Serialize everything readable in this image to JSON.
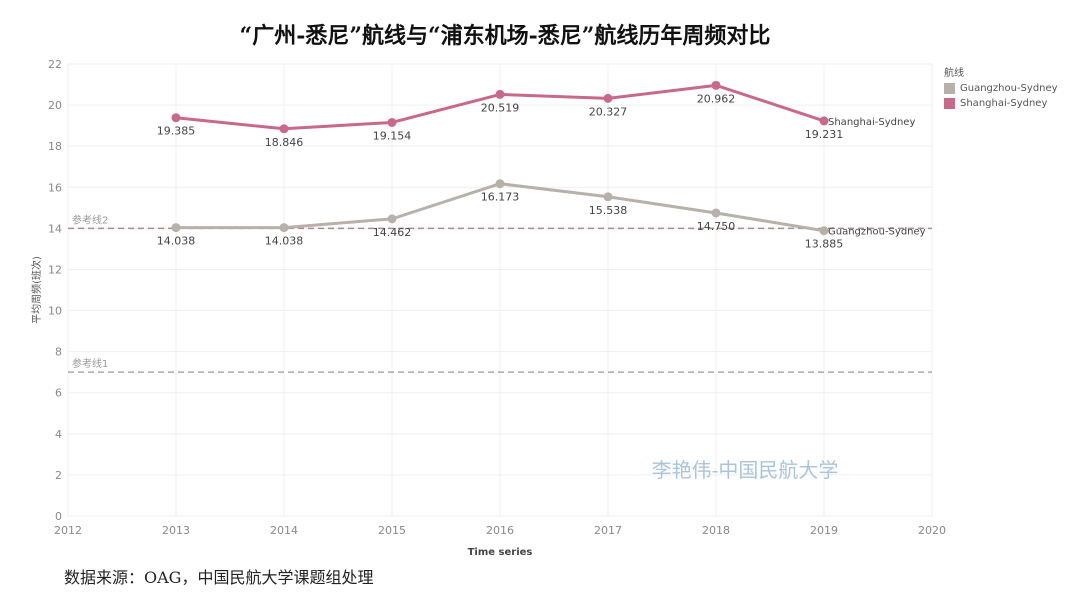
{
  "title": "“广州-悉尼”航线与“浦东机场-悉尼”航线历年周频对比",
  "source_note": "数据来源：OAG，中国民航大学课题组处理",
  "watermark": "李艳伟-中国民航大学",
  "legend": {
    "title": "航线",
    "items": [
      {
        "label": "Guangzhou-Sydney",
        "color": "#b8b1aa"
      },
      {
        "label": "Shanghai-Sydney",
        "color": "#c9698a"
      }
    ]
  },
  "chart_data": {
    "type": "line",
    "xlabel": "Time series",
    "ylabel": "平均周频(班次)",
    "x_ticks": [
      "2012",
      "2013",
      "2014",
      "2015",
      "2016",
      "2017",
      "2018",
      "2019",
      "2020"
    ],
    "y_ticks": [
      "0",
      "2",
      "4",
      "6",
      "8",
      "10",
      "12",
      "14",
      "16",
      "18",
      "20",
      "22"
    ],
    "xlim": [
      2012,
      2020
    ],
    "ylim": [
      0,
      22
    ],
    "grid": true,
    "legend_position": "right",
    "series": [
      {
        "name": "Shanghai-Sydney",
        "color": "#c9698a",
        "end_label": "Shanghai-Sydney",
        "x": [
          2013,
          2014,
          2015,
          2016,
          2017,
          2018,
          2019
        ],
        "values": [
          19.385,
          18.846,
          19.154,
          20.519,
          20.327,
          20.962,
          19.231
        ],
        "labels": [
          "19.385",
          "18.846",
          "19.154",
          "20.519",
          "20.327",
          "20.962",
          "19.231"
        ]
      },
      {
        "name": "Guangzhou-Sydney",
        "color": "#b8b1aa",
        "end_label": "Guangzhou-Sydney",
        "x": [
          2013,
          2014,
          2015,
          2016,
          2017,
          2018,
          2019
        ],
        "values": [
          14.038,
          14.038,
          14.462,
          16.173,
          15.538,
          14.75,
          13.885
        ],
        "labels": [
          "14.038",
          "14.038",
          "14.462",
          "16.173",
          "15.538",
          "14.750",
          "13.885"
        ]
      }
    ],
    "reference_lines": [
      {
        "label": "参考线2",
        "value": 14,
        "color": "#b08a86"
      },
      {
        "label": "参考线1",
        "value": 7,
        "color": "#aaaaaa"
      }
    ]
  }
}
